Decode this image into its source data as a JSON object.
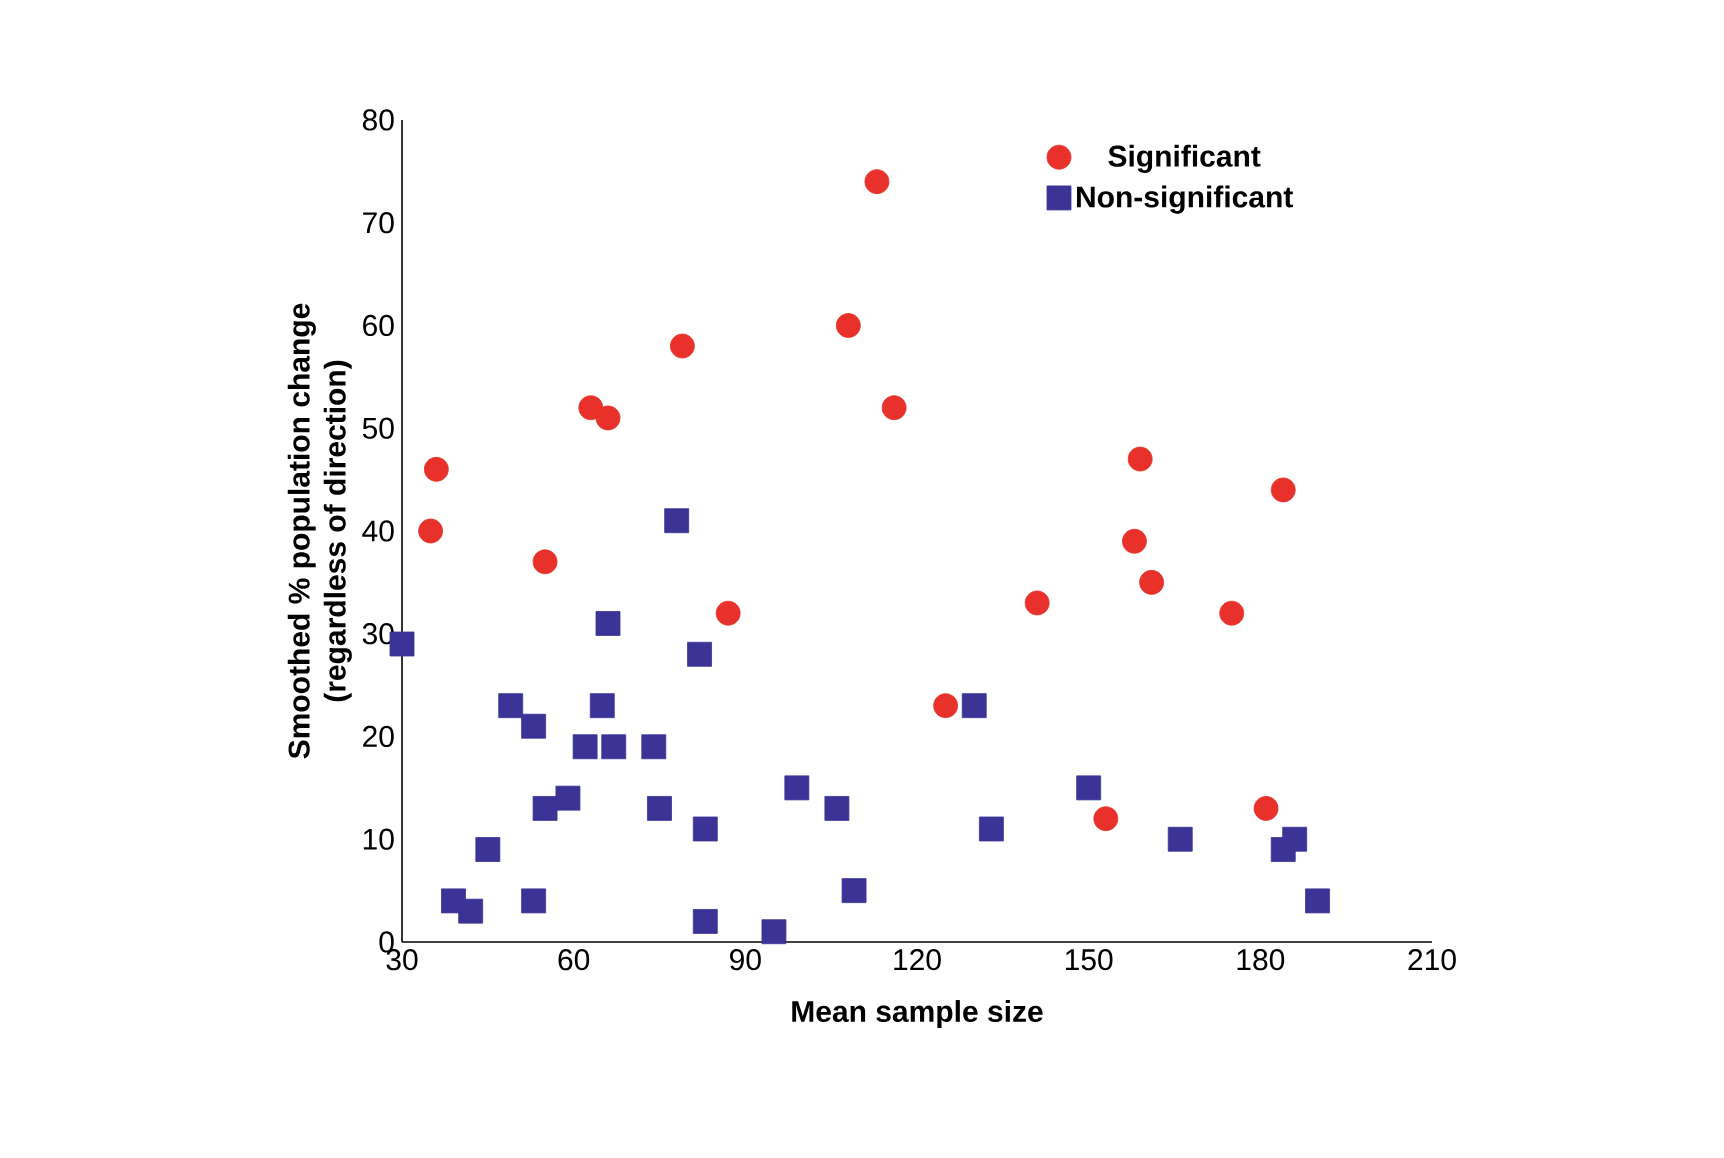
{
  "chart_data": {
    "type": "scatter",
    "xlabel": "Mean sample size",
    "ylabel": "Smoothed % population change\n(regardless of direction)",
    "xlim": [
      30,
      210
    ],
    "xticks": [
      30,
      60,
      90,
      120,
      150,
      180,
      210
    ],
    "ylim": [
      0,
      80
    ],
    "yticks": [
      0,
      10,
      20,
      30,
      40,
      50,
      60,
      70,
      80
    ],
    "legend": "top right",
    "grid": false,
    "series": [
      {
        "name": "Significant",
        "color": "#e8312a",
        "marker": "circle",
        "x": [
          35,
          36,
          55,
          63,
          66,
          79,
          87,
          108,
          113,
          116,
          125,
          141,
          153,
          158,
          159,
          161,
          175,
          181,
          184
        ],
        "values": [
          40,
          46,
          37,
          52,
          51,
          58,
          32,
          60,
          74,
          52,
          23,
          33,
          12,
          39,
          47,
          35,
          32,
          13,
          44
        ]
      },
      {
        "name": "Non-significant",
        "color": "#3b3396",
        "marker": "square",
        "x": [
          30,
          39,
          42,
          45,
          49,
          53,
          53,
          55,
          59,
          62,
          65,
          66,
          67,
          74,
          75,
          78,
          82,
          83,
          83,
          95,
          99,
          106,
          109,
          130,
          133,
          150,
          166,
          184,
          186,
          190
        ],
        "values": [
          29,
          4,
          3,
          9,
          23,
          21,
          4,
          13,
          14,
          19,
          23,
          31,
          19,
          19,
          13,
          41,
          28,
          11,
          2,
          1,
          15,
          13,
          5,
          23,
          11,
          15,
          10,
          9,
          10,
          4
        ]
      }
    ]
  }
}
